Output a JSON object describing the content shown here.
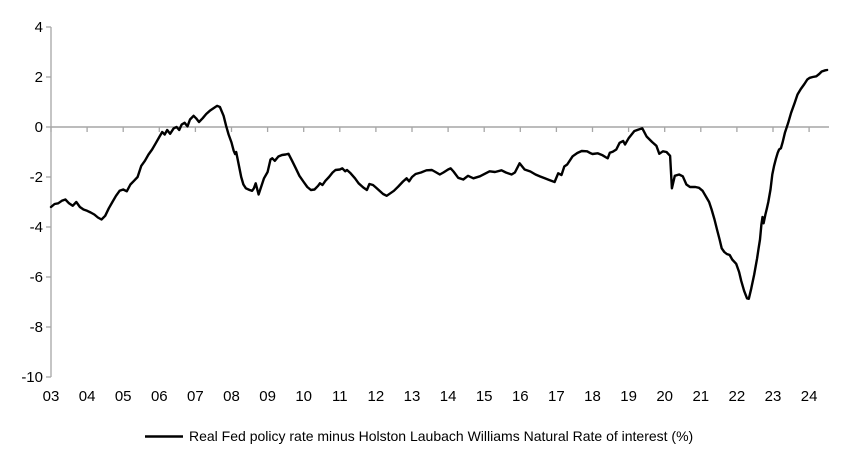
{
  "chart_data": {
    "type": "line",
    "legend": "Real Fed policy rate minus Holston Laubach Williams Natural Rate of interest (%)",
    "legend_position": "bottom-center",
    "background": "#ffffff",
    "grid": "zero-line-only",
    "axis_color": "#a6a6a6",
    "text_color": "#000000",
    "line_color": "#000000",
    "xlabel": "",
    "ylabel": "",
    "ylim": [
      -10,
      4
    ],
    "y_ticks": [
      4,
      2,
      0,
      -2,
      -4,
      -6,
      -8,
      -10
    ],
    "y_tick_labels": [
      "4",
      "2",
      "0",
      "-2",
      "-4",
      "-6",
      "-8",
      "-10"
    ],
    "x_tick_years": [
      3,
      4,
      5,
      6,
      7,
      8,
      9,
      10,
      11,
      12,
      13,
      14,
      15,
      16,
      17,
      18,
      19,
      20,
      21,
      22,
      23,
      24
    ],
    "x_tick_labels": [
      "03",
      "04",
      "05",
      "06",
      "07",
      "08",
      "09",
      "10",
      "11",
      "12",
      "13",
      "14",
      "15",
      "16",
      "17",
      "18",
      "19",
      "20",
      "21",
      "22",
      "23",
      "24"
    ],
    "series": [
      {
        "name": "Real Fed policy rate minus Holston Laubach Williams Natural Rate of interest (%)",
        "points": [
          [
            3.0,
            -3.2
          ],
          [
            3.1,
            -3.08
          ],
          [
            3.2,
            -3.05
          ],
          [
            3.3,
            -2.95
          ],
          [
            3.4,
            -2.9
          ],
          [
            3.5,
            -3.05
          ],
          [
            3.6,
            -3.15
          ],
          [
            3.7,
            -3.0
          ],
          [
            3.8,
            -3.2
          ],
          [
            3.9,
            -3.3
          ],
          [
            4.0,
            -3.35
          ],
          [
            4.1,
            -3.42
          ],
          [
            4.2,
            -3.5
          ],
          [
            4.3,
            -3.62
          ],
          [
            4.4,
            -3.7
          ],
          [
            4.5,
            -3.55
          ],
          [
            4.6,
            -3.25
          ],
          [
            4.7,
            -3.0
          ],
          [
            4.8,
            -2.75
          ],
          [
            4.9,
            -2.55
          ],
          [
            5.0,
            -2.5
          ],
          [
            5.1,
            -2.57
          ],
          [
            5.2,
            -2.3
          ],
          [
            5.3,
            -2.15
          ],
          [
            5.4,
            -2.0
          ],
          [
            5.5,
            -1.55
          ],
          [
            5.6,
            -1.35
          ],
          [
            5.7,
            -1.1
          ],
          [
            5.8,
            -0.9
          ],
          [
            5.9,
            -0.65
          ],
          [
            6.0,
            -0.4
          ],
          [
            6.08,
            -0.2
          ],
          [
            6.15,
            -0.3
          ],
          [
            6.22,
            -0.12
          ],
          [
            6.3,
            -0.27
          ],
          [
            6.4,
            -0.05
          ],
          [
            6.48,
            0.0
          ],
          [
            6.55,
            -0.12
          ],
          [
            6.62,
            0.1
          ],
          [
            6.7,
            0.17
          ],
          [
            6.78,
            0.03
          ],
          [
            6.85,
            0.3
          ],
          [
            6.95,
            0.45
          ],
          [
            7.02,
            0.35
          ],
          [
            7.1,
            0.2
          ],
          [
            7.2,
            0.35
          ],
          [
            7.3,
            0.52
          ],
          [
            7.4,
            0.65
          ],
          [
            7.5,
            0.75
          ],
          [
            7.6,
            0.85
          ],
          [
            7.68,
            0.8
          ],
          [
            7.78,
            0.45
          ],
          [
            7.85,
            0.05
          ],
          [
            7.92,
            -0.3
          ],
          [
            8.0,
            -0.62
          ],
          [
            8.06,
            -0.95
          ],
          [
            8.1,
            -1.08
          ],
          [
            8.13,
            -1.0
          ],
          [
            8.2,
            -1.5
          ],
          [
            8.27,
            -2.0
          ],
          [
            8.33,
            -2.3
          ],
          [
            8.4,
            -2.45
          ],
          [
            8.5,
            -2.52
          ],
          [
            8.57,
            -2.55
          ],
          [
            8.62,
            -2.45
          ],
          [
            8.67,
            -2.25
          ],
          [
            8.75,
            -2.7
          ],
          [
            8.82,
            -2.4
          ],
          [
            8.9,
            -2.05
          ],
          [
            9.0,
            -1.8
          ],
          [
            9.08,
            -1.3
          ],
          [
            9.13,
            -1.25
          ],
          [
            9.2,
            -1.35
          ],
          [
            9.3,
            -1.18
          ],
          [
            9.4,
            -1.12
          ],
          [
            9.5,
            -1.1
          ],
          [
            9.58,
            -1.07
          ],
          [
            9.68,
            -1.35
          ],
          [
            9.78,
            -1.65
          ],
          [
            9.88,
            -1.95
          ],
          [
            10.0,
            -2.2
          ],
          [
            10.1,
            -2.4
          ],
          [
            10.2,
            -2.52
          ],
          [
            10.3,
            -2.5
          ],
          [
            10.4,
            -2.35
          ],
          [
            10.45,
            -2.25
          ],
          [
            10.52,
            -2.32
          ],
          [
            10.6,
            -2.15
          ],
          [
            10.7,
            -2.0
          ],
          [
            10.8,
            -1.82
          ],
          [
            10.88,
            -1.72
          ],
          [
            11.0,
            -1.7
          ],
          [
            11.07,
            -1.65
          ],
          [
            11.15,
            -1.77
          ],
          [
            11.2,
            -1.72
          ],
          [
            11.3,
            -1.85
          ],
          [
            11.42,
            -2.05
          ],
          [
            11.52,
            -2.25
          ],
          [
            11.65,
            -2.42
          ],
          [
            11.75,
            -2.52
          ],
          [
            11.82,
            -2.28
          ],
          [
            11.92,
            -2.32
          ],
          [
            12.0,
            -2.42
          ],
          [
            12.1,
            -2.55
          ],
          [
            12.2,
            -2.68
          ],
          [
            12.3,
            -2.75
          ],
          [
            12.4,
            -2.65
          ],
          [
            12.5,
            -2.55
          ],
          [
            12.62,
            -2.38
          ],
          [
            12.75,
            -2.18
          ],
          [
            12.85,
            -2.05
          ],
          [
            12.92,
            -2.17
          ],
          [
            13.0,
            -2.0
          ],
          [
            13.1,
            -1.88
          ],
          [
            13.25,
            -1.82
          ],
          [
            13.4,
            -1.73
          ],
          [
            13.55,
            -1.72
          ],
          [
            13.65,
            -1.8
          ],
          [
            13.77,
            -1.9
          ],
          [
            13.87,
            -1.82
          ],
          [
            14.0,
            -1.7
          ],
          [
            14.07,
            -1.65
          ],
          [
            14.15,
            -1.78
          ],
          [
            14.28,
            -2.03
          ],
          [
            14.42,
            -2.1
          ],
          [
            14.55,
            -1.95
          ],
          [
            14.7,
            -2.05
          ],
          [
            14.88,
            -1.97
          ],
          [
            15.07,
            -1.83
          ],
          [
            15.15,
            -1.77
          ],
          [
            15.3,
            -1.8
          ],
          [
            15.48,
            -1.73
          ],
          [
            15.6,
            -1.82
          ],
          [
            15.76,
            -1.9
          ],
          [
            15.85,
            -1.82
          ],
          [
            15.98,
            -1.45
          ],
          [
            16.12,
            -1.7
          ],
          [
            16.28,
            -1.78
          ],
          [
            16.42,
            -1.9
          ],
          [
            16.55,
            -1.98
          ],
          [
            16.68,
            -2.05
          ],
          [
            16.8,
            -2.12
          ],
          [
            16.95,
            -2.2
          ],
          [
            17.05,
            -1.85
          ],
          [
            17.14,
            -1.92
          ],
          [
            17.22,
            -1.58
          ],
          [
            17.3,
            -1.5
          ],
          [
            17.45,
            -1.17
          ],
          [
            17.58,
            -1.04
          ],
          [
            17.7,
            -0.96
          ],
          [
            17.85,
            -0.97
          ],
          [
            17.95,
            -1.05
          ],
          [
            18.0,
            -1.08
          ],
          [
            18.14,
            -1.05
          ],
          [
            18.28,
            -1.13
          ],
          [
            18.38,
            -1.22
          ],
          [
            18.42,
            -1.25
          ],
          [
            18.48,
            -1.03
          ],
          [
            18.56,
            -0.99
          ],
          [
            18.66,
            -0.9
          ],
          [
            18.75,
            -0.63
          ],
          [
            18.85,
            -0.56
          ],
          [
            18.9,
            -0.7
          ],
          [
            19.0,
            -0.45
          ],
          [
            19.16,
            -0.16
          ],
          [
            19.3,
            -0.09
          ],
          [
            19.38,
            -0.05
          ],
          [
            19.5,
            -0.38
          ],
          [
            19.65,
            -0.6
          ],
          [
            19.77,
            -0.75
          ],
          [
            19.85,
            -1.07
          ],
          [
            19.95,
            -0.97
          ],
          [
            20.05,
            -1.0
          ],
          [
            20.15,
            -1.15
          ],
          [
            20.2,
            -2.45
          ],
          [
            20.28,
            -1.95
          ],
          [
            20.4,
            -1.9
          ],
          [
            20.5,
            -1.97
          ],
          [
            20.6,
            -2.3
          ],
          [
            20.7,
            -2.4
          ],
          [
            20.85,
            -2.4
          ],
          [
            20.95,
            -2.43
          ],
          [
            21.05,
            -2.55
          ],
          [
            21.15,
            -2.8
          ],
          [
            21.23,
            -3.0
          ],
          [
            21.3,
            -3.3
          ],
          [
            21.38,
            -3.7
          ],
          [
            21.45,
            -4.1
          ],
          [
            21.52,
            -4.5
          ],
          [
            21.58,
            -4.85
          ],
          [
            21.65,
            -5.0
          ],
          [
            21.72,
            -5.08
          ],
          [
            21.8,
            -5.12
          ],
          [
            21.87,
            -5.3
          ],
          [
            21.98,
            -5.47
          ],
          [
            22.06,
            -5.8
          ],
          [
            22.12,
            -6.15
          ],
          [
            22.2,
            -6.55
          ],
          [
            22.28,
            -6.85
          ],
          [
            22.33,
            -6.87
          ],
          [
            22.4,
            -6.45
          ],
          [
            22.48,
            -5.9
          ],
          [
            22.56,
            -5.25
          ],
          [
            22.6,
            -4.85
          ],
          [
            22.64,
            -4.5
          ],
          [
            22.68,
            -3.9
          ],
          [
            22.71,
            -3.6
          ],
          [
            22.74,
            -3.85
          ],
          [
            22.79,
            -3.5
          ],
          [
            22.83,
            -3.25
          ],
          [
            22.87,
            -3.0
          ],
          [
            22.93,
            -2.5
          ],
          [
            22.98,
            -1.9
          ],
          [
            23.03,
            -1.55
          ],
          [
            23.08,
            -1.27
          ],
          [
            23.13,
            -1.03
          ],
          [
            23.17,
            -0.9
          ],
          [
            23.22,
            -0.85
          ],
          [
            23.27,
            -0.6
          ],
          [
            23.33,
            -0.23
          ],
          [
            23.42,
            0.17
          ],
          [
            23.5,
            0.57
          ],
          [
            23.6,
            0.97
          ],
          [
            23.68,
            1.3
          ],
          [
            23.77,
            1.52
          ],
          [
            23.87,
            1.72
          ],
          [
            23.95,
            1.9
          ],
          [
            24.02,
            1.97
          ],
          [
            24.1,
            2.0
          ],
          [
            24.2,
            2.03
          ],
          [
            24.28,
            2.12
          ],
          [
            24.35,
            2.22
          ],
          [
            24.45,
            2.27
          ],
          [
            24.5,
            2.28
          ]
        ]
      }
    ]
  }
}
